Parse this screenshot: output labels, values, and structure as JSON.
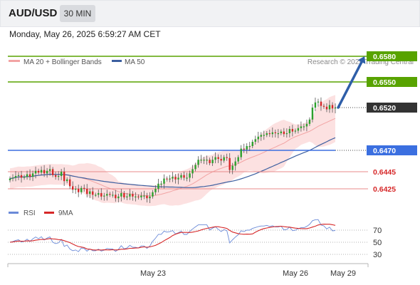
{
  "header": {
    "pair": "AUD/USD",
    "timeframe": "30 MIN"
  },
  "timestamp": "Monday, May 26, 2025 6:59:27 AM CET",
  "legend": {
    "ma20_bb": "MA 20 + Bollinger Bands",
    "ma50": "MA 50",
    "credit": "Research © 2025 Trading Central",
    "rsi": "RSI",
    "rsi_ma": "9MA"
  },
  "colors": {
    "up": "#2ca02c",
    "down": "#d62728",
    "band": "#f9c9c9",
    "ma20": "#f2a4a4",
    "ma50": "#3c5fa0",
    "resistance": "#58a300",
    "support": "#3b6fe0",
    "pivot": "#e88b8b",
    "current": "#333333",
    "arrow": "#2e5ea8",
    "rsi": "#6a8ad8",
    "rsi_ma": "#d62728"
  },
  "chart_data": [
    {
      "type": "candlestick",
      "instrument": "AUD/USD",
      "timeframe": "30 MIN",
      "x_ticks": [
        "May 23",
        "May 26",
        "May 29"
      ],
      "ylim": [
        0.6408,
        0.6605
      ],
      "levels": [
        {
          "label": "0.6580",
          "value": 0.658,
          "kind": "resistance"
        },
        {
          "label": "0.6550",
          "value": 0.655,
          "kind": "resistance"
        },
        {
          "label": "0.6520",
          "value": 0.652,
          "kind": "current"
        },
        {
          "label": "0.6470",
          "value": 0.647,
          "kind": "support"
        },
        {
          "label": "0.6445",
          "value": 0.6445,
          "kind": "pivot"
        },
        {
          "label": "0.6425",
          "value": 0.6425,
          "kind": "pivot"
        }
      ],
      "target_arrow": {
        "from": 0.652,
        "to": 0.658
      },
      "close": [
        0.6437,
        0.6438,
        0.644,
        0.6441,
        0.6438,
        0.6439,
        0.6442,
        0.6439,
        0.6443,
        0.6446,
        0.6444,
        0.6447,
        0.6443,
        0.6446,
        0.6448,
        0.6441,
        0.6439,
        0.644,
        0.6445,
        0.6434,
        0.6436,
        0.6428,
        0.6424,
        0.6425,
        0.6421,
        0.6426,
        0.6425,
        0.6419,
        0.6422,
        0.6418,
        0.6418,
        0.642,
        0.6416,
        0.6417,
        0.6419,
        0.6418,
        0.6418,
        0.6414,
        0.6416,
        0.642,
        0.6415,
        0.6416,
        0.6419,
        0.6416,
        0.6416,
        0.6415,
        0.6417,
        0.6417,
        0.6414,
        0.6416,
        0.6421,
        0.6425,
        0.6431,
        0.6431,
        0.6437,
        0.6436,
        0.6437,
        0.6439,
        0.6436,
        0.6438,
        0.6441,
        0.6438,
        0.6438,
        0.6443,
        0.6448,
        0.6453,
        0.6459,
        0.6459,
        0.6459,
        0.6459,
        0.6455,
        0.6459,
        0.6462,
        0.646,
        0.6458,
        0.6462,
        0.6461,
        0.6447,
        0.6452,
        0.6457,
        0.6462,
        0.6472,
        0.6471,
        0.6475,
        0.6475,
        0.648,
        0.6483,
        0.6486,
        0.6488,
        0.6488,
        0.649,
        0.6489,
        0.6491,
        0.649,
        0.649,
        0.6492,
        0.6489,
        0.649,
        0.6495,
        0.6492,
        0.6493,
        0.6496,
        0.6498,
        0.6498,
        0.6501,
        0.6506,
        0.652,
        0.6526,
        0.6527,
        0.6522,
        0.6521,
        0.6518,
        0.6523,
        0.6519,
        0.652
      ]
    },
    {
      "type": "line",
      "name": "RSI",
      "y_ticks": [
        30,
        50,
        70
      ],
      "ylim": [
        20,
        82
      ],
      "x_ticks": [
        "May 23",
        "May 26",
        "May 29"
      ]
    }
  ]
}
